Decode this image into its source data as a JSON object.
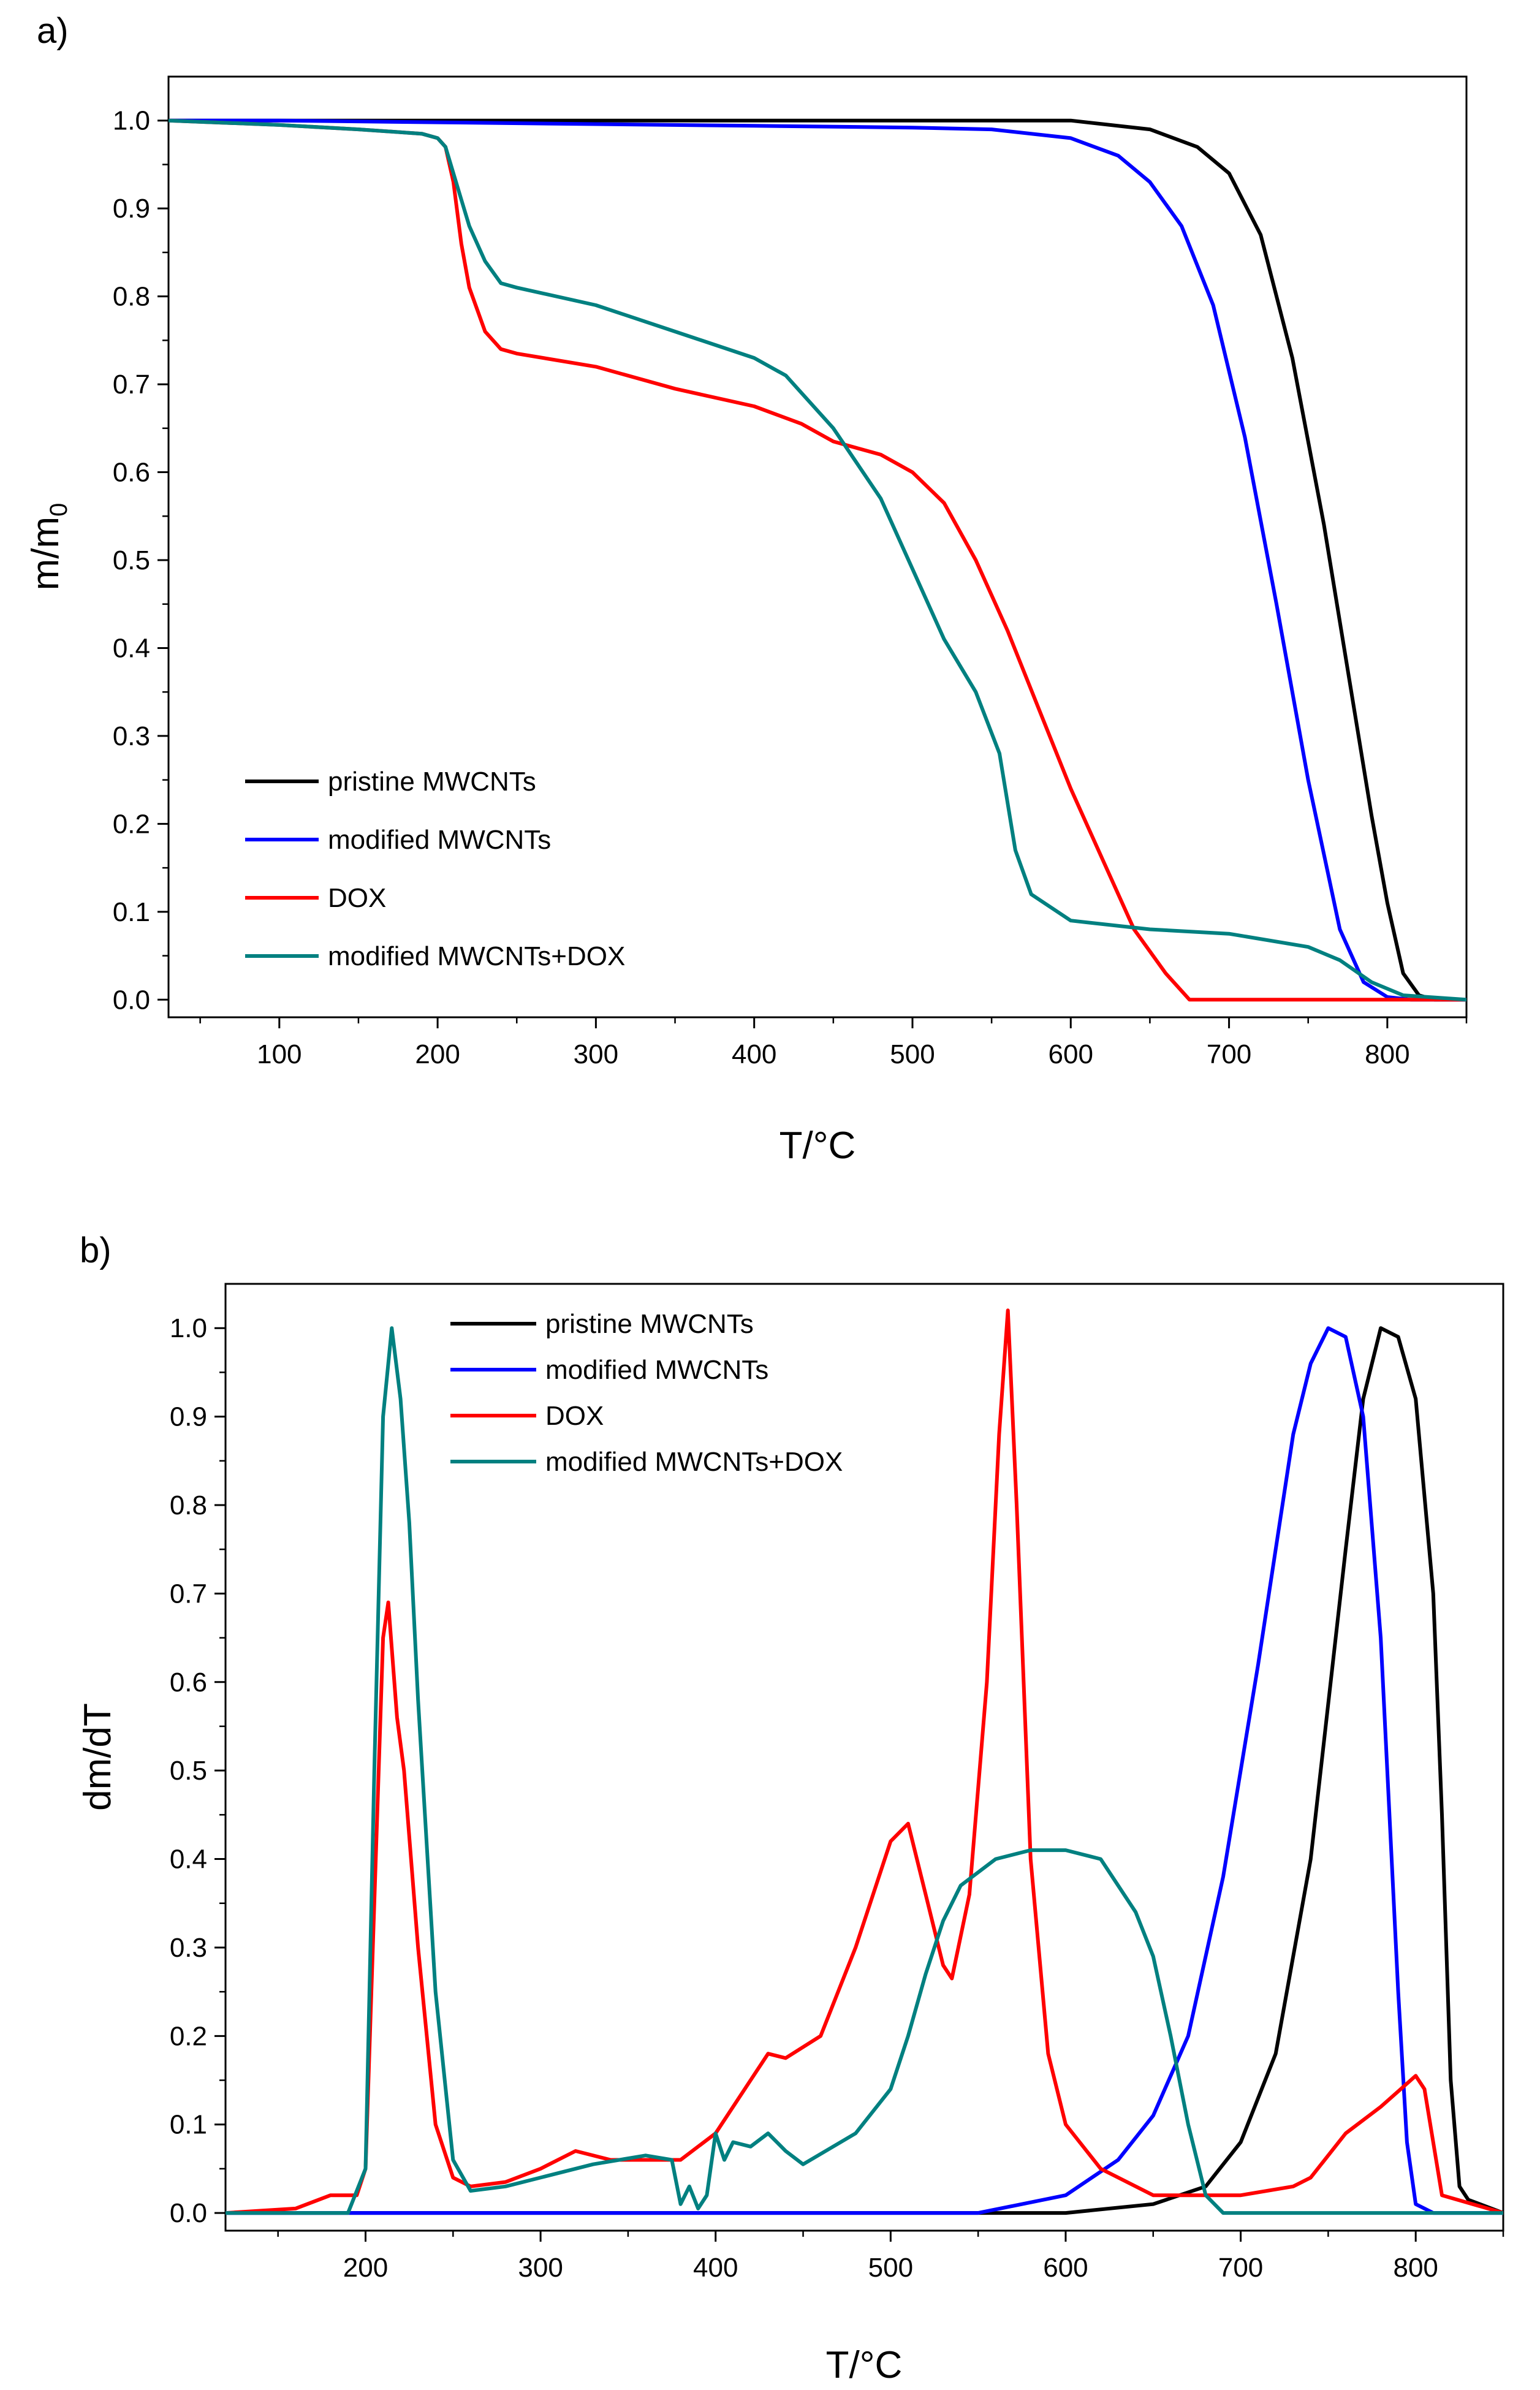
{
  "chart_data": [
    {
      "panel_label": "a)",
      "type": "line",
      "xlabel": "T/°C",
      "ylabel_main": "m/m",
      "ylabel_sub": "0",
      "xlim": [
        30,
        850
      ],
      "ylim": [
        -0.02,
        1.05
      ],
      "xticks": [
        100,
        200,
        300,
        400,
        500,
        600,
        700,
        800
      ],
      "yticks": [
        0.0,
        0.1,
        0.2,
        0.3,
        0.4,
        0.5,
        0.6,
        0.7,
        0.8,
        0.9,
        1.0
      ],
      "ytick_labels": [
        "0.0",
        "0.1",
        "0.2",
        "0.3",
        "0.4",
        "0.5",
        "0.6",
        "0.7",
        "0.8",
        "0.9",
        "1.0"
      ],
      "legend_position": "lower-left",
      "series": [
        {
          "name": "pristine MWCNTs",
          "color": "#000000",
          "x": [
            30,
            100,
            200,
            300,
            400,
            500,
            600,
            650,
            680,
            700,
            720,
            740,
            760,
            780,
            790,
            800,
            810,
            820,
            830,
            850
          ],
          "y": [
            1.0,
            1.0,
            1.0,
            1.0,
            1.0,
            1.0,
            1.0,
            0.99,
            0.97,
            0.94,
            0.87,
            0.73,
            0.54,
            0.32,
            0.21,
            0.11,
            0.03,
            0.005,
            0.0,
            0.0
          ]
        },
        {
          "name": "modified MWCNTs",
          "color": "#0000ff",
          "x": [
            30,
            100,
            200,
            300,
            400,
            500,
            550,
            600,
            630,
            650,
            670,
            690,
            710,
            730,
            750,
            770,
            785,
            800,
            815,
            850
          ],
          "y": [
            1.0,
            1.0,
            0.998,
            0.996,
            0.994,
            0.992,
            0.99,
            0.98,
            0.96,
            0.93,
            0.88,
            0.79,
            0.64,
            0.45,
            0.25,
            0.08,
            0.02,
            0.003,
            0.0,
            0.0
          ]
        },
        {
          "name": "DOX",
          "color": "#ff0000",
          "x": [
            30,
            100,
            150,
            190,
            200,
            205,
            210,
            215,
            220,
            230,
            240,
            250,
            300,
            350,
            400,
            430,
            450,
            480,
            500,
            520,
            540,
            560,
            580,
            600,
            620,
            640,
            660,
            675,
            700,
            850
          ],
          "y": [
            1.0,
            0.995,
            0.99,
            0.985,
            0.98,
            0.97,
            0.93,
            0.86,
            0.81,
            0.76,
            0.74,
            0.735,
            0.72,
            0.695,
            0.675,
            0.655,
            0.635,
            0.62,
            0.6,
            0.565,
            0.5,
            0.42,
            0.33,
            0.24,
            0.16,
            0.08,
            0.03,
            0.0,
            0.0,
            0.0
          ]
        },
        {
          "name": "modified MWCNTs+DOX",
          "color": "#008080",
          "x": [
            30,
            100,
            150,
            190,
            200,
            205,
            210,
            215,
            220,
            230,
            240,
            250,
            300,
            350,
            400,
            420,
            450,
            480,
            500,
            520,
            540,
            555,
            565,
            575,
            600,
            650,
            700,
            750,
            770,
            790,
            810,
            850
          ],
          "y": [
            1.0,
            0.995,
            0.99,
            0.985,
            0.98,
            0.97,
            0.94,
            0.91,
            0.88,
            0.84,
            0.815,
            0.81,
            0.79,
            0.76,
            0.73,
            0.71,
            0.65,
            0.57,
            0.49,
            0.41,
            0.35,
            0.28,
            0.17,
            0.12,
            0.09,
            0.08,
            0.075,
            0.06,
            0.045,
            0.02,
            0.005,
            0.0
          ]
        }
      ]
    },
    {
      "panel_label": "b)",
      "type": "line",
      "xlabel": "T/°C",
      "ylabel_main": "dm/dT",
      "ylabel_sub": "",
      "xlim": [
        120,
        850
      ],
      "ylim": [
        -0.02,
        1.05
      ],
      "xticks": [
        200,
        300,
        400,
        500,
        600,
        700,
        800
      ],
      "yticks": [
        0.0,
        0.1,
        0.2,
        0.3,
        0.4,
        0.5,
        0.6,
        0.7,
        0.8,
        0.9,
        1.0
      ],
      "ytick_labels": [
        "0.0",
        "0.1",
        "0.2",
        "0.3",
        "0.4",
        "0.5",
        "0.6",
        "0.7",
        "0.8",
        "0.9",
        "1.0"
      ],
      "legend_position": "top-center",
      "series": [
        {
          "name": "pristine MWCNTs",
          "color": "#000000",
          "x": [
            120,
            600,
            650,
            680,
            700,
            720,
            740,
            760,
            770,
            780,
            790,
            800,
            810,
            815,
            820,
            825,
            830,
            850
          ],
          "y": [
            0.0,
            0.0,
            0.01,
            0.03,
            0.08,
            0.18,
            0.4,
            0.75,
            0.92,
            1.0,
            0.99,
            0.92,
            0.7,
            0.45,
            0.15,
            0.03,
            0.015,
            0.0
          ]
        },
        {
          "name": "modified MWCNTs",
          "color": "#0000ff",
          "x": [
            120,
            550,
            600,
            630,
            650,
            670,
            690,
            710,
            730,
            740,
            750,
            760,
            770,
            780,
            790,
            795,
            800,
            810,
            850
          ],
          "y": [
            0.0,
            0.0,
            0.02,
            0.06,
            0.11,
            0.2,
            0.38,
            0.62,
            0.88,
            0.96,
            1.0,
            0.99,
            0.9,
            0.65,
            0.25,
            0.08,
            0.01,
            0.0,
            0.0
          ]
        },
        {
          "name": "DOX",
          "color": "#ff0000",
          "x": [
            120,
            160,
            180,
            195,
            200,
            205,
            210,
            213,
            218,
            222,
            230,
            240,
            250,
            260,
            280,
            300,
            320,
            340,
            360,
            380,
            400,
            420,
            430,
            440,
            460,
            480,
            500,
            510,
            520,
            530,
            535,
            545,
            555,
            562,
            567,
            572,
            580,
            590,
            600,
            620,
            650,
            700,
            730,
            740,
            760,
            780,
            800,
            805,
            815,
            850
          ],
          "y": [
            0.0,
            0.005,
            0.02,
            0.02,
            0.05,
            0.35,
            0.65,
            0.69,
            0.56,
            0.5,
            0.3,
            0.1,
            0.04,
            0.03,
            0.035,
            0.05,
            0.07,
            0.06,
            0.06,
            0.06,
            0.09,
            0.15,
            0.18,
            0.175,
            0.2,
            0.3,
            0.42,
            0.44,
            0.36,
            0.28,
            0.265,
            0.36,
            0.6,
            0.88,
            1.02,
            0.8,
            0.4,
            0.18,
            0.1,
            0.05,
            0.02,
            0.02,
            0.03,
            0.04,
            0.09,
            0.12,
            0.155,
            0.14,
            0.02,
            0.0
          ]
        },
        {
          "name": "modified MWCNTs+DOX",
          "color": "#008080",
          "x": [
            120,
            190,
            200,
            205,
            210,
            215,
            220,
            225,
            230,
            240,
            250,
            260,
            280,
            300,
            330,
            360,
            375,
            380,
            385,
            390,
            395,
            400,
            405,
            410,
            420,
            430,
            440,
            450,
            480,
            500,
            510,
            520,
            530,
            540,
            560,
            580,
            600,
            620,
            640,
            650,
            660,
            670,
            680,
            690,
            850
          ],
          "y": [
            0.0,
            0.0,
            0.05,
            0.5,
            0.9,
            1.0,
            0.92,
            0.78,
            0.58,
            0.25,
            0.06,
            0.025,
            0.03,
            0.04,
            0.055,
            0.065,
            0.06,
            0.01,
            0.03,
            0.005,
            0.02,
            0.09,
            0.06,
            0.08,
            0.075,
            0.09,
            0.07,
            0.055,
            0.09,
            0.14,
            0.2,
            0.27,
            0.33,
            0.37,
            0.4,
            0.41,
            0.41,
            0.4,
            0.34,
            0.29,
            0.2,
            0.1,
            0.02,
            0.0,
            0.0
          ]
        }
      ]
    }
  ]
}
